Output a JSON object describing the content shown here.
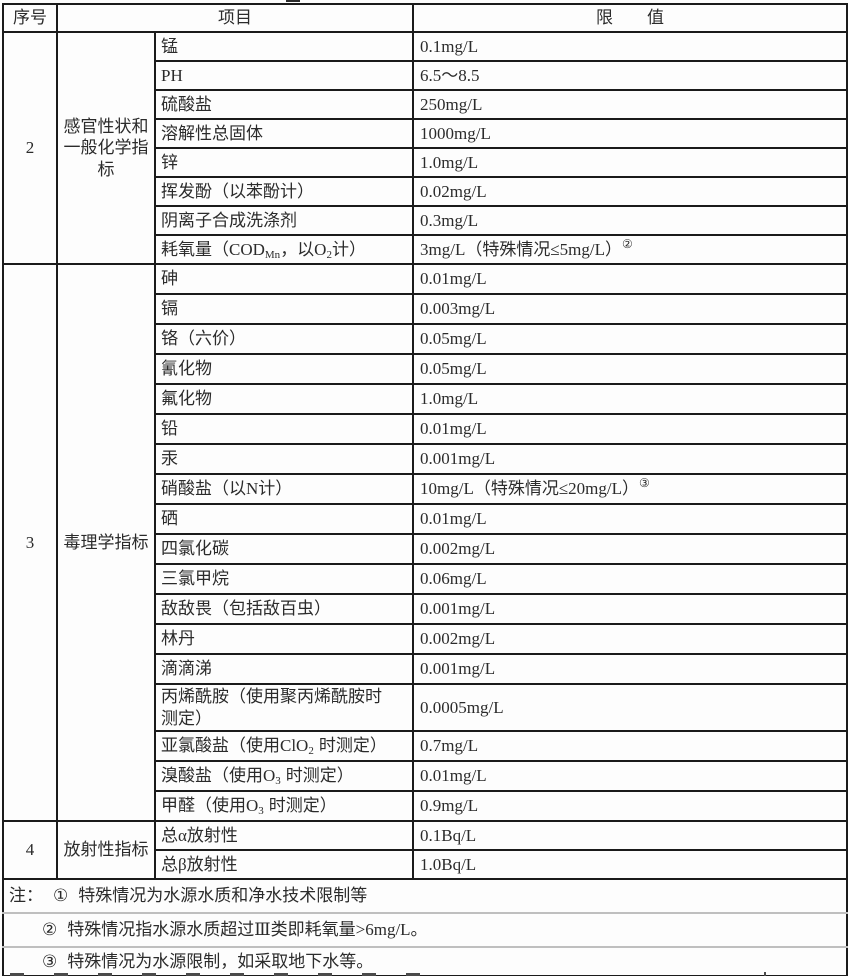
{
  "table": {
    "header": {
      "no": "序号",
      "item": "项目",
      "limit": "限　　值"
    },
    "groups": [
      {
        "no": "2",
        "name": "感官性状和一般化学指标",
        "rows": [
          {
            "item": "锰",
            "limit": "0.1mg/L"
          },
          {
            "item": "PH",
            "limit": "6.5～8.5"
          },
          {
            "item": "硫酸盐",
            "limit": "250mg/L"
          },
          {
            "item": "溶解性总固体",
            "limit": "1000mg/L"
          },
          {
            "item": "锌",
            "limit": "1.0mg/L"
          },
          {
            "item": "挥发酚（以苯酚计）",
            "limit": "0.02mg/L"
          },
          {
            "item": "阴离子合成洗涤剂",
            "limit": "0.3mg/L"
          },
          {
            "item": [
              {
                "t": "耗氧量（COD"
              },
              {
                "t": "Mn",
                "v": "sub"
              },
              {
                "t": "，以O"
              },
              {
                "t": "2",
                "v": "sub"
              },
              {
                "t": "计）"
              }
            ],
            "limit": [
              {
                "t": "3mg/L（特殊情况≤5mg/L）"
              },
              {
                "t": "②",
                "v": "sup"
              }
            ]
          }
        ]
      },
      {
        "no": "3",
        "name": "毒理学指标",
        "rows": [
          {
            "item": "砷",
            "limit": "0.01mg/L"
          },
          {
            "item": "镉",
            "limit": "0.003mg/L"
          },
          {
            "item": "铬（六价）",
            "limit": "0.05mg/L"
          },
          {
            "item": "氰化物",
            "limit": "0.05mg/L"
          },
          {
            "item": "氟化物",
            "limit": "1.0mg/L"
          },
          {
            "item": "铅",
            "limit": "0.01mg/L"
          },
          {
            "item": "汞",
            "limit": "0.001mg/L"
          },
          {
            "item": "硝酸盐（以N计）",
            "limit": [
              {
                "t": "10mg/L（特殊情况≤20mg/L）"
              },
              {
                "t": "③",
                "v": "sup"
              }
            ]
          },
          {
            "item": "硒",
            "limit": "0.01mg/L"
          },
          {
            "item": "四氯化碳",
            "limit": "0.002mg/L"
          },
          {
            "item": "三氯甲烷",
            "limit": "0.06mg/L"
          },
          {
            "item": "敌敌畏（包括敌百虫）",
            "limit": "0.001mg/L"
          },
          {
            "item": "林丹",
            "limit": "0.002mg/L"
          },
          {
            "item": "滴滴涕",
            "limit": "0.001mg/L"
          },
          {
            "item": [
              {
                "t": "丙烯酰胺（使用聚丙烯酰胺时"
              },
              {
                "br": true
              },
              {
                "t": "测定）"
              }
            ],
            "limit": "0.0005mg/L"
          },
          {
            "item": [
              {
                "t": "亚氯酸盐（使用ClO"
              },
              {
                "t": "2",
                "v": "sub",
                "sp": true
              },
              {
                "t": "时测定）"
              }
            ],
            "limit": "0.7mg/L"
          },
          {
            "item": [
              {
                "t": "溴酸盐（使用O"
              },
              {
                "t": "3",
                "v": "sub",
                "sp": true
              },
              {
                "t": "时测定）"
              }
            ],
            "limit": "0.01mg/L"
          },
          {
            "item": [
              {
                "t": "甲醛（使用O"
              },
              {
                "t": "3",
                "v": "sub",
                "sp": true
              },
              {
                "t": "时测定）"
              }
            ],
            "limit": "0.9mg/L"
          }
        ]
      },
      {
        "no": "4",
        "name": "放射性指标",
        "rows": [
          {
            "item": "总α放射性",
            "limit": "0.1Bq/L"
          },
          {
            "item": "总β放射性",
            "limit": "1.0Bq/L"
          }
        ]
      }
    ],
    "notes": [
      {
        "prefix": "注：",
        "num": "①",
        "text": "特殊情况为水源水质和净水技术限制等"
      },
      {
        "prefix": "",
        "num": "②",
        "text": "特殊情况指水源水质超过Ⅲ类即耗氧量>6mg/L。"
      },
      {
        "prefix": "",
        "num": "③",
        "text": "特殊情况为水源限制，如采取地下水等。"
      }
    ]
  }
}
